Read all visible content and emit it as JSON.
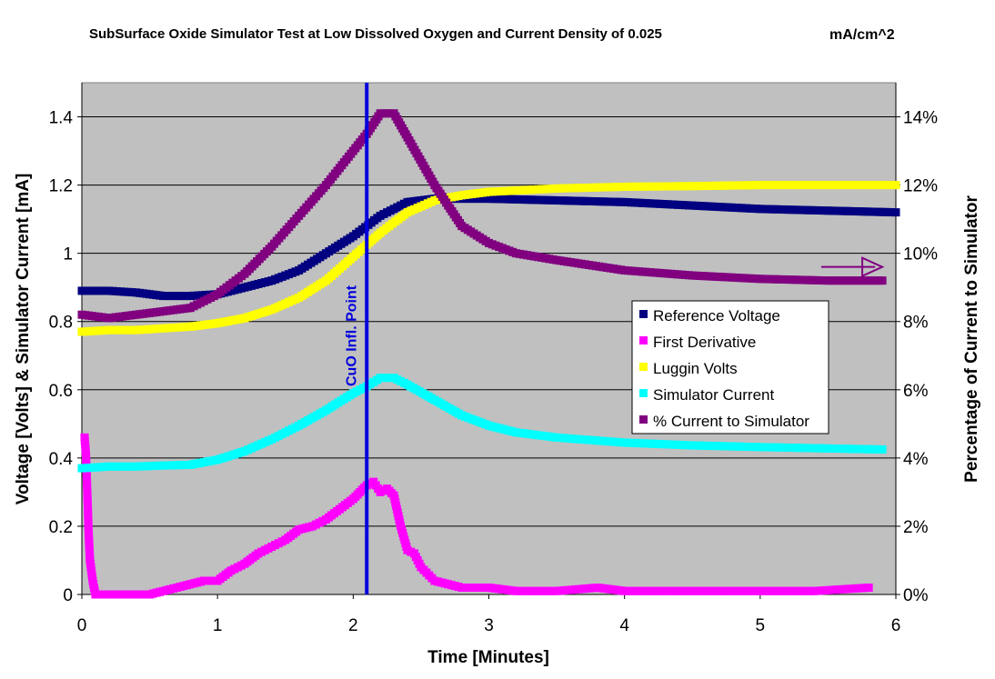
{
  "chart_data": {
    "type": "scatter",
    "title": "SubSurface Oxide Simulator Test at Low Dissolved Oxygen and Current Density of 0.025",
    "title_units": "mA/cm^2",
    "xlabel": "Time [Minutes]",
    "ylabel": "Voltage [Volts] & Simulator Current  [mA]",
    "y2label": "Percentage of Current to Simulator",
    "xlim": [
      0,
      6
    ],
    "ylim": [
      0,
      1.5
    ],
    "y2lim": [
      0,
      15
    ],
    "xticks": [
      "0",
      "1",
      "2",
      "3",
      "4",
      "5",
      "6"
    ],
    "yticks": [
      "0",
      "0.2",
      "0.4",
      "0.6",
      "0.8",
      "1",
      "1.2",
      "1.4"
    ],
    "y2ticks": [
      "0%",
      "2%",
      "4%",
      "6%",
      "8%",
      "10%",
      "12%",
      "14%"
    ],
    "plot_background": "#c0c0c0",
    "grid": "horizontal",
    "legend_position": "center-right",
    "annotation": {
      "text": "CuO Infl. Point",
      "x": 2.1,
      "color": "#0000dd"
    },
    "arrow": {
      "from": [
        5.45,
        9.6
      ],
      "to": [
        5.9,
        9.6
      ],
      "axis": "secondary",
      "color": "#800080"
    },
    "series": [
      {
        "name": "Reference Voltage",
        "color": "#000080",
        "axis": "primary",
        "points": [
          [
            0,
            0.89
          ],
          [
            0.2,
            0.89
          ],
          [
            0.4,
            0.885
          ],
          [
            0.6,
            0.875
          ],
          [
            0.8,
            0.875
          ],
          [
            1.0,
            0.88
          ],
          [
            1.2,
            0.9
          ],
          [
            1.4,
            0.92
          ],
          [
            1.6,
            0.95
          ],
          [
            1.8,
            1.0
          ],
          [
            2.0,
            1.05
          ],
          [
            2.2,
            1.11
          ],
          [
            2.4,
            1.15
          ],
          [
            2.6,
            1.16
          ],
          [
            2.8,
            1.16
          ],
          [
            3.0,
            1.16
          ],
          [
            3.5,
            1.155
          ],
          [
            4.0,
            1.15
          ],
          [
            4.5,
            1.14
          ],
          [
            5.0,
            1.13
          ],
          [
            5.5,
            1.125
          ],
          [
            6.0,
            1.12
          ]
        ]
      },
      {
        "name": "First Derivative",
        "color": "#ff00ff",
        "axis": "primary",
        "points": [
          [
            0.02,
            0.46
          ],
          [
            0.03,
            0.41
          ],
          [
            0.04,
            0.3
          ],
          [
            0.05,
            0.18
          ],
          [
            0.06,
            0.1
          ],
          [
            0.08,
            0.04
          ],
          [
            0.1,
            0.0
          ],
          [
            0.3,
            0.0
          ],
          [
            0.5,
            0.0
          ],
          [
            0.6,
            0.01
          ],
          [
            0.7,
            0.02
          ],
          [
            0.8,
            0.03
          ],
          [
            0.9,
            0.04
          ],
          [
            1.0,
            0.04
          ],
          [
            1.1,
            0.07
          ],
          [
            1.2,
            0.09
          ],
          [
            1.3,
            0.12
          ],
          [
            1.4,
            0.14
          ],
          [
            1.5,
            0.16
          ],
          [
            1.6,
            0.19
          ],
          [
            1.7,
            0.2
          ],
          [
            1.8,
            0.22
          ],
          [
            1.9,
            0.25
          ],
          [
            2.0,
            0.28
          ],
          [
            2.05,
            0.3
          ],
          [
            2.1,
            0.32
          ],
          [
            2.15,
            0.33
          ],
          [
            2.2,
            0.3
          ],
          [
            2.25,
            0.31
          ],
          [
            2.3,
            0.29
          ],
          [
            2.35,
            0.2
          ],
          [
            2.4,
            0.13
          ],
          [
            2.45,
            0.12
          ],
          [
            2.5,
            0.08
          ],
          [
            2.6,
            0.04
          ],
          [
            2.7,
            0.03
          ],
          [
            2.8,
            0.02
          ],
          [
            3.0,
            0.02
          ],
          [
            3.2,
            0.01
          ],
          [
            3.5,
            0.01
          ],
          [
            3.8,
            0.02
          ],
          [
            4.0,
            0.01
          ],
          [
            4.3,
            0.01
          ],
          [
            4.6,
            0.01
          ],
          [
            5.0,
            0.01
          ],
          [
            5.4,
            0.01
          ],
          [
            5.8,
            0.02
          ]
        ]
      },
      {
        "name": "Luggin Volts",
        "color": "#ffff00",
        "axis": "primary",
        "points": [
          [
            0,
            0.77
          ],
          [
            0.2,
            0.775
          ],
          [
            0.4,
            0.775
          ],
          [
            0.6,
            0.78
          ],
          [
            0.8,
            0.785
          ],
          [
            1.0,
            0.795
          ],
          [
            1.2,
            0.81
          ],
          [
            1.4,
            0.835
          ],
          [
            1.6,
            0.87
          ],
          [
            1.8,
            0.92
          ],
          [
            2.0,
            0.99
          ],
          [
            2.2,
            1.06
          ],
          [
            2.4,
            1.12
          ],
          [
            2.6,
            1.155
          ],
          [
            2.8,
            1.17
          ],
          [
            3.0,
            1.18
          ],
          [
            3.5,
            1.19
          ],
          [
            4.0,
            1.195
          ],
          [
            4.5,
            1.197
          ],
          [
            5.0,
            1.2
          ],
          [
            5.5,
            1.2
          ],
          [
            6.0,
            1.2
          ]
        ]
      },
      {
        "name": "Simulator Current",
        "color": "#00ffff",
        "axis": "primary",
        "points": [
          [
            0,
            0.37
          ],
          [
            0.2,
            0.375
          ],
          [
            0.4,
            0.375
          ],
          [
            0.6,
            0.378
          ],
          [
            0.8,
            0.38
          ],
          [
            1.0,
            0.395
          ],
          [
            1.2,
            0.42
          ],
          [
            1.4,
            0.455
          ],
          [
            1.6,
            0.495
          ],
          [
            1.8,
            0.54
          ],
          [
            2.0,
            0.59
          ],
          [
            2.1,
            0.61
          ],
          [
            2.2,
            0.635
          ],
          [
            2.3,
            0.635
          ],
          [
            2.4,
            0.615
          ],
          [
            2.6,
            0.57
          ],
          [
            2.8,
            0.525
          ],
          [
            3.0,
            0.495
          ],
          [
            3.2,
            0.475
          ],
          [
            3.5,
            0.46
          ],
          [
            4.0,
            0.445
          ],
          [
            4.5,
            0.437
          ],
          [
            5.0,
            0.432
          ],
          [
            5.5,
            0.428
          ],
          [
            5.9,
            0.425
          ]
        ]
      },
      {
        "name": "% Current to Simulator",
        "color": "#800080",
        "axis": "secondary",
        "points": [
          [
            0,
            8.2
          ],
          [
            0.2,
            8.1
          ],
          [
            0.4,
            8.2
          ],
          [
            0.6,
            8.3
          ],
          [
            0.8,
            8.4
          ],
          [
            1.0,
            8.8
          ],
          [
            1.2,
            9.4
          ],
          [
            1.4,
            10.2
          ],
          [
            1.6,
            11.1
          ],
          [
            1.8,
            12.0
          ],
          [
            2.0,
            13.0
          ],
          [
            2.1,
            13.5
          ],
          [
            2.2,
            14.1
          ],
          [
            2.3,
            14.1
          ],
          [
            2.4,
            13.4
          ],
          [
            2.6,
            12.0
          ],
          [
            2.8,
            10.8
          ],
          [
            3.0,
            10.3
          ],
          [
            3.2,
            10.0
          ],
          [
            3.5,
            9.8
          ],
          [
            4.0,
            9.5
          ],
          [
            4.5,
            9.35
          ],
          [
            5.0,
            9.25
          ],
          [
            5.5,
            9.2
          ],
          [
            5.9,
            9.2
          ]
        ]
      }
    ]
  }
}
